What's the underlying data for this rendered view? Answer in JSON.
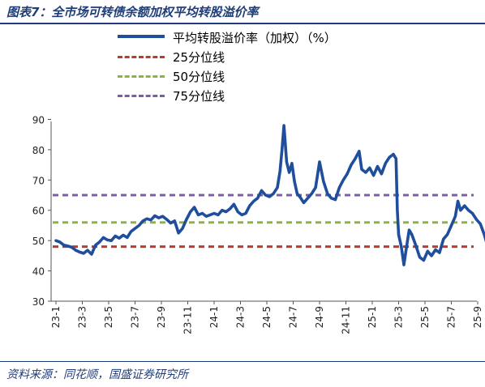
{
  "header": {
    "title": "图表7：全市场可转债余额加权平均转股溢价率"
  },
  "footer": {
    "source": "资料来源：同花顺，国盛证券研究所"
  },
  "legend": [
    {
      "label": "平均转股溢价率（加权）（%）",
      "color": "#1f4e9c",
      "style": "solid"
    },
    {
      "label": "25分位线",
      "color": "#c0392b",
      "style": "dashed"
    },
    {
      "label": "50分位线",
      "color": "#8db53c",
      "style": "dashed"
    },
    {
      "label": "75分位线",
      "color": "#7b5ea7",
      "style": "dashed"
    }
  ],
  "chart_data": {
    "type": "line",
    "x_tick_labels": [
      "23-1",
      "23-3",
      "23-5",
      "23-7",
      "23-9",
      "23-11",
      "24-1",
      "24-3",
      "24-5",
      "24-7",
      "24-9",
      "24-11",
      "25-1",
      "25-3",
      "25-5",
      "25-7",
      "25-9"
    ],
    "y_tick_labels": [
      "30",
      "40",
      "50",
      "60",
      "70",
      "80",
      "90"
    ],
    "ylim": [
      30,
      92
    ],
    "xlim": [
      0,
      33.2
    ],
    "grid": false,
    "legend_position": "top",
    "series": [
      {
        "name": "平均转股溢价率（加权）（%）",
        "color": "#1f4e9c",
        "style": "solid",
        "points": [
          [
            0,
            50
          ],
          [
            0.3,
            49.5
          ],
          [
            0.6,
            48.5
          ],
          [
            0.9,
            48.2
          ],
          [
            1.2,
            47.8
          ],
          [
            1.5,
            46.8
          ],
          [
            1.8,
            46.2
          ],
          [
            2.1,
            45.8
          ],
          [
            2.4,
            46.8
          ],
          [
            2.7,
            45.5
          ],
          [
            3.0,
            48.5
          ],
          [
            3.3,
            49.5
          ],
          [
            3.6,
            51.0
          ],
          [
            3.9,
            50.2
          ],
          [
            4.2,
            50.0
          ],
          [
            4.5,
            51.5
          ],
          [
            4.8,
            50.8
          ],
          [
            5.1,
            51.8
          ],
          [
            5.4,
            51.0
          ],
          [
            5.7,
            53.0
          ],
          [
            6.0,
            54.0
          ],
          [
            6.3,
            55.0
          ],
          [
            6.6,
            56.5
          ],
          [
            6.9,
            57.2
          ],
          [
            7.2,
            56.8
          ],
          [
            7.5,
            58.2
          ],
          [
            7.8,
            57.5
          ],
          [
            8.1,
            58.0
          ],
          [
            8.4,
            57.0
          ],
          [
            8.7,
            55.8
          ],
          [
            9.0,
            56.5
          ],
          [
            9.3,
            52.5
          ],
          [
            9.6,
            54.0
          ],
          [
            9.9,
            57.0
          ],
          [
            10.2,
            59.5
          ],
          [
            10.5,
            61.0
          ],
          [
            10.8,
            58.5
          ],
          [
            11.1,
            59.0
          ],
          [
            11.4,
            58.0
          ],
          [
            11.7,
            58.5
          ],
          [
            12.0,
            59.0
          ],
          [
            12.3,
            58.5
          ],
          [
            12.6,
            60.0
          ],
          [
            12.9,
            59.5
          ],
          [
            13.2,
            60.5
          ],
          [
            13.5,
            62.0
          ],
          [
            13.8,
            59.5
          ],
          [
            14.1,
            58.5
          ],
          [
            14.4,
            59.0
          ],
          [
            14.7,
            61.5
          ],
          [
            15.0,
            63.0
          ],
          [
            15.3,
            64.0
          ],
          [
            15.6,
            66.5
          ],
          [
            15.9,
            65.0
          ],
          [
            16.2,
            64.5
          ],
          [
            16.5,
            65.5
          ],
          [
            16.8,
            67.5
          ],
          [
            17.0,
            73.0
          ],
          [
            17.15,
            80.0
          ],
          [
            17.3,
            88.0
          ],
          [
            17.5,
            76.0
          ],
          [
            17.7,
            72.5
          ],
          [
            17.9,
            75.5
          ],
          [
            18.1,
            69.5
          ],
          [
            18.3,
            65.5
          ],
          [
            18.5,
            64.5
          ],
          [
            18.8,
            62.5
          ],
          [
            19.1,
            64.0
          ],
          [
            19.4,
            65.5
          ],
          [
            19.7,
            67.5
          ],
          [
            20.0,
            76.0
          ],
          [
            20.3,
            69.5
          ],
          [
            20.6,
            65.5
          ],
          [
            20.9,
            64.0
          ],
          [
            21.2,
            63.5
          ],
          [
            21.5,
            67.5
          ],
          [
            21.8,
            70.0
          ],
          [
            22.1,
            72.0
          ],
          [
            22.4,
            75.0
          ],
          [
            22.7,
            77.0
          ],
          [
            23.0,
            79.5
          ],
          [
            23.2,
            73.5
          ],
          [
            23.5,
            72.5
          ],
          [
            23.8,
            74.0
          ],
          [
            24.1,
            71.5
          ],
          [
            24.4,
            74.5
          ],
          [
            24.7,
            72.0
          ],
          [
            25.0,
            75.5
          ],
          [
            25.3,
            77.5
          ],
          [
            25.6,
            78.5
          ],
          [
            25.8,
            77.0
          ],
          [
            25.9,
            60.0
          ],
          [
            26.0,
            52.0
          ],
          [
            26.2,
            48.0
          ],
          [
            26.4,
            42.0
          ],
          [
            26.6,
            48.0
          ],
          [
            26.8,
            53.5
          ],
          [
            27.0,
            52.0
          ],
          [
            27.3,
            48.5
          ],
          [
            27.6,
            44.5
          ],
          [
            27.9,
            43.5
          ],
          [
            28.2,
            46.5
          ],
          [
            28.5,
            45.0
          ],
          [
            28.8,
            47.0
          ],
          [
            29.1,
            46.0
          ],
          [
            29.4,
            50.5
          ],
          [
            29.7,
            52.0
          ],
          [
            30.0,
            55.0
          ],
          [
            30.3,
            58.0
          ],
          [
            30.5,
            63.0
          ],
          [
            30.7,
            60.0
          ],
          [
            31.0,
            61.5
          ],
          [
            31.3,
            60.0
          ],
          [
            31.6,
            59.0
          ],
          [
            31.9,
            57.0
          ],
          [
            32.2,
            55.5
          ],
          [
            32.5,
            52.0
          ],
          [
            32.8,
            47.5
          ],
          [
            33.0,
            48.0
          ],
          [
            33.2,
            46.0
          ]
        ]
      },
      {
        "name": "25分位线",
        "color": "#c0392b",
        "style": "dashed",
        "value": 48.0
      },
      {
        "name": "50分位线",
        "color": "#8db53c",
        "style": "dashed",
        "value": 56.0
      },
      {
        "name": "75分位线",
        "color": "#7b5ea7",
        "style": "dashed",
        "value": 65.0
      }
    ]
  }
}
